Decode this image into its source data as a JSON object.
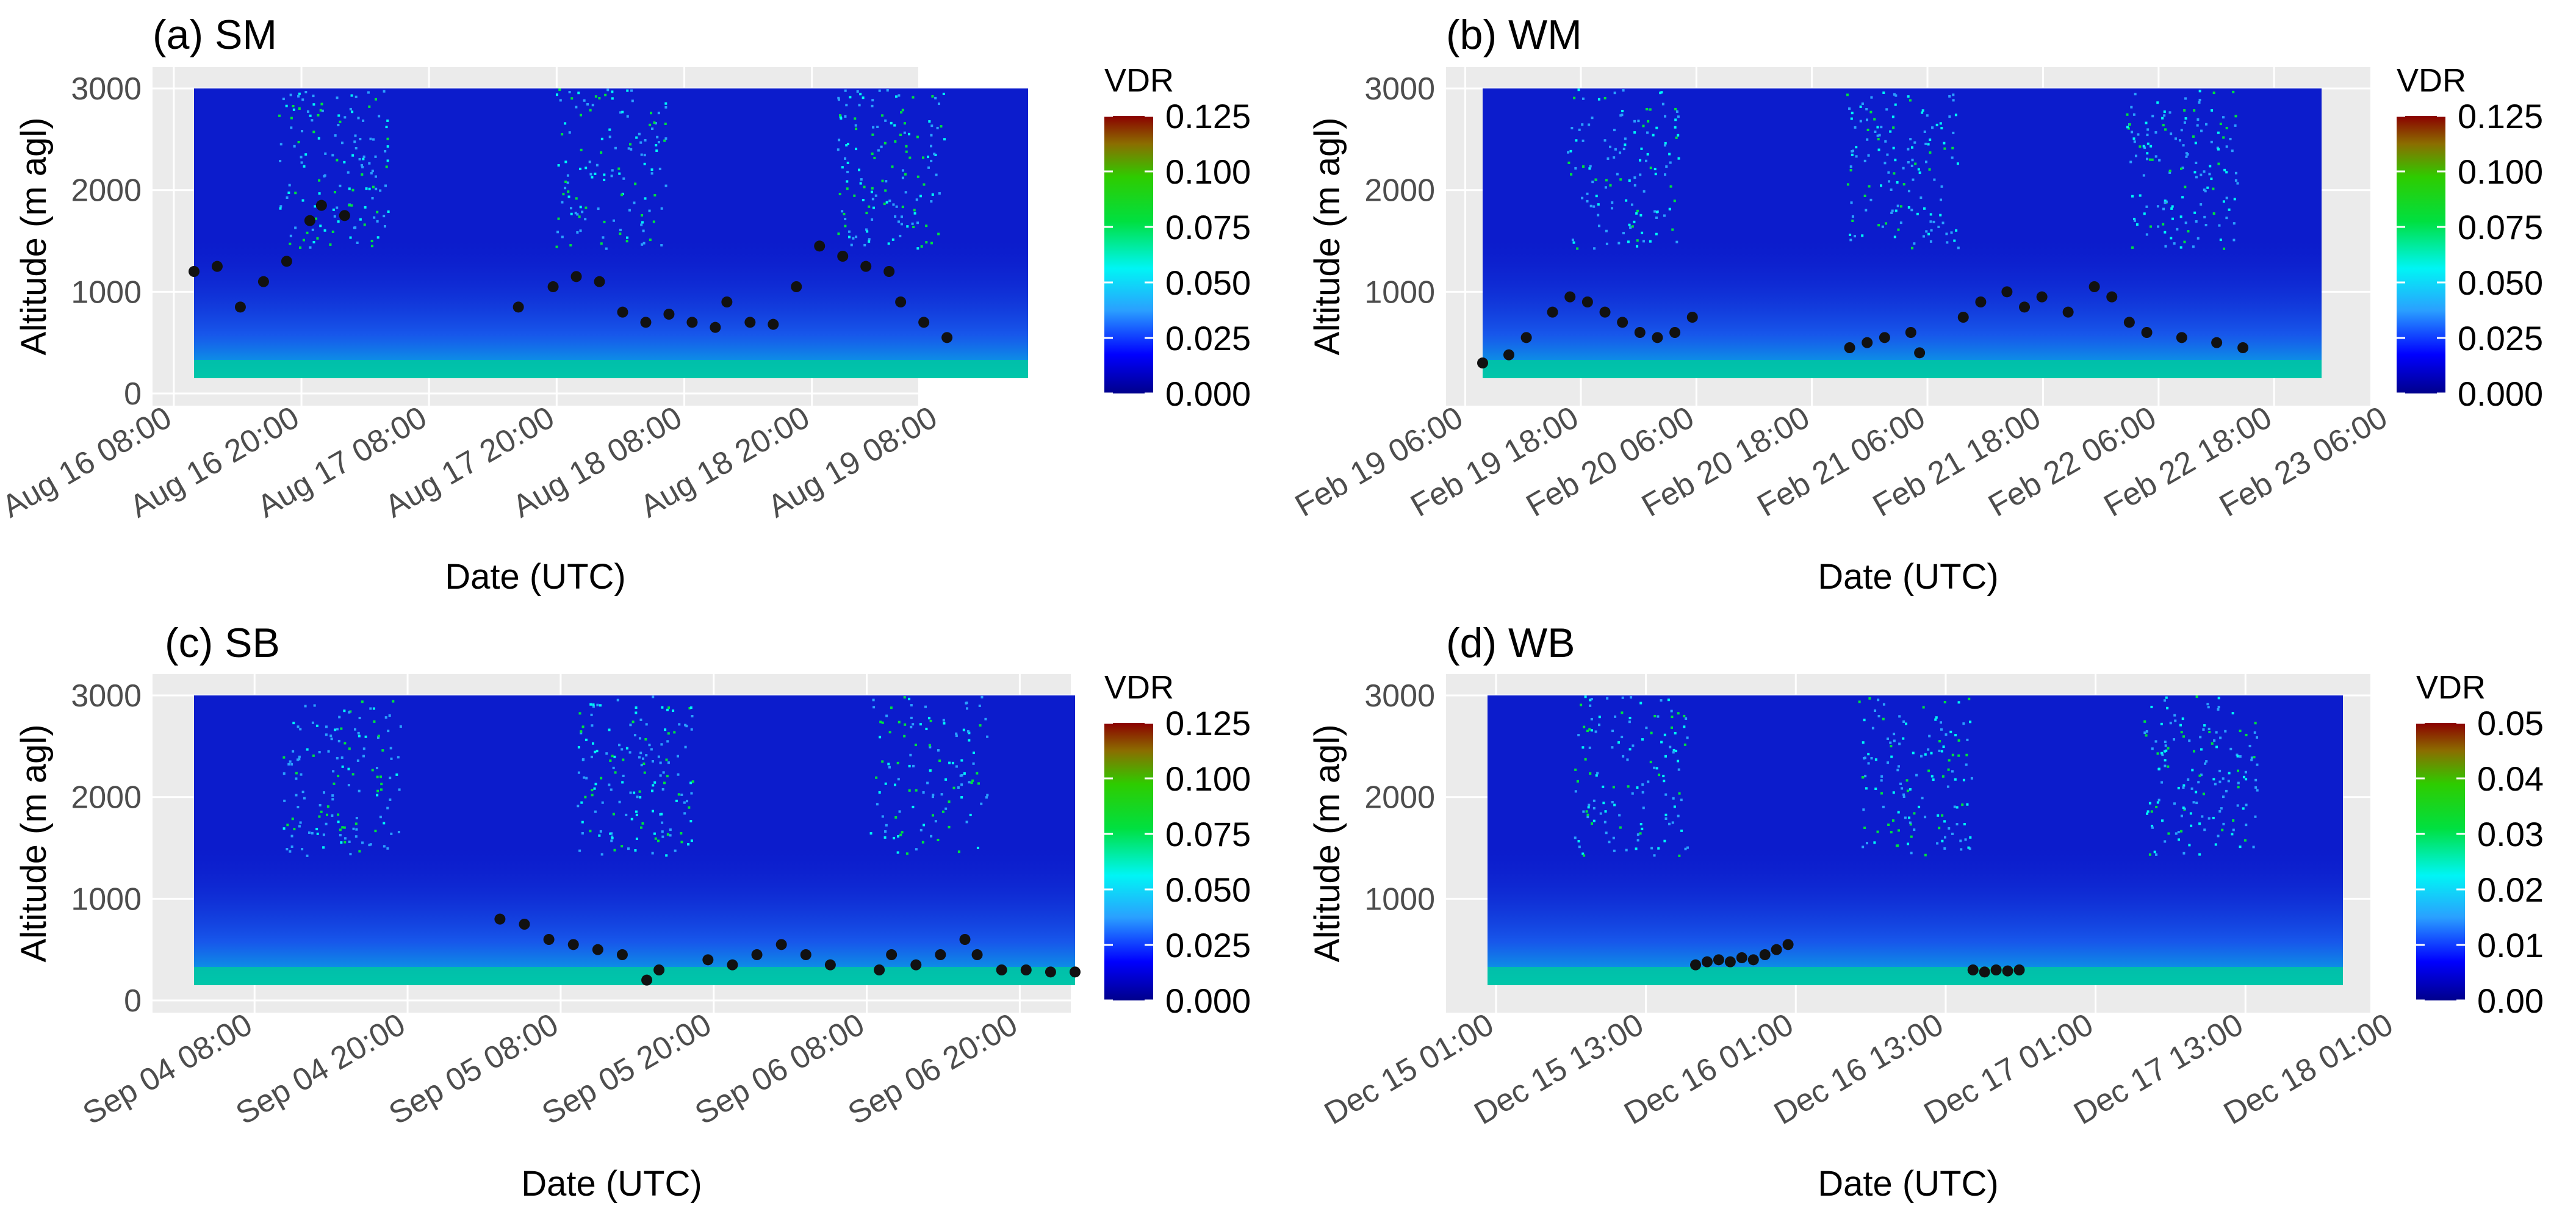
{
  "figure": {
    "colors": {
      "panel_bg": "#ebebeb",
      "grid": "#ffffff",
      "curtain_base": "#0c1ccc",
      "points": "#111111",
      "colorscale": [
        "#00008b",
        "#0000ff",
        "#2aa0ff",
        "#00f5f5",
        "#00e040",
        "#2ecc00",
        "#8b6d00",
        "#8b0000"
      ]
    }
  },
  "chart_data": [
    {
      "id": "a",
      "type": "heatmap",
      "title": "(a) SM",
      "xlabel": "Date (UTC)",
      "ylabel": "Altitude (m agl)",
      "x_hours": [
        0,
        72
      ],
      "ylim": [
        0,
        3000
      ],
      "ytick_values": [
        0,
        1000,
        2000,
        3000
      ],
      "ytick_labels": [
        "0",
        "1000",
        "2000",
        "3000"
      ],
      "xtick_hours": [
        2,
        14,
        26,
        38,
        50,
        62,
        74
      ],
      "xtick_labels": [
        "Aug 16 08:00",
        "Aug 16 20:00",
        "Aug 17 08:00",
        "Aug 17 20:00",
        "Aug 18 08:00",
        "Aug 18 20:00",
        "Aug 19 08:00"
      ],
      "legend": {
        "title": "VDR",
        "range": [
          0,
          0.125
        ],
        "labels": [
          "0.125",
          "0.100",
          "0.075",
          "0.050",
          "0.025",
          "0.000"
        ]
      },
      "heights": [
        [
          0,
          1200
        ],
        [
          2,
          1250
        ],
        [
          4,
          850
        ],
        [
          6,
          1100
        ],
        [
          8,
          1300
        ],
        [
          10,
          1700
        ],
        [
          11,
          1850
        ],
        [
          13,
          1750
        ],
        [
          28,
          850
        ],
        [
          31,
          1050
        ],
        [
          33,
          1150
        ],
        [
          35,
          1100
        ],
        [
          37,
          800
        ],
        [
          39,
          700
        ],
        [
          41,
          780
        ],
        [
          43,
          700
        ],
        [
          45,
          650
        ],
        [
          46,
          900
        ],
        [
          48,
          700
        ],
        [
          50,
          680
        ],
        [
          52,
          1050
        ],
        [
          54,
          1450
        ],
        [
          56,
          1350
        ],
        [
          58,
          1250
        ],
        [
          60,
          1200
        ],
        [
          61,
          900
        ],
        [
          63,
          700
        ],
        [
          65,
          550
        ]
      ]
    },
    {
      "id": "b",
      "type": "heatmap",
      "title": "(b) WM",
      "xlabel": "Date (UTC)",
      "ylabel": "Altitude (m agl)",
      "x_hours": [
        0,
        96
      ],
      "ylim": [
        0,
        3000
      ],
      "ytick_values": [
        1000,
        2000,
        3000
      ],
      "ytick_labels": [
        "1000",
        "2000",
        "3000"
      ],
      "xtick_hours": [
        2,
        14,
        26,
        38,
        50,
        62,
        74,
        86,
        98
      ],
      "xtick_labels": [
        "Feb 19 06:00",
        "Feb 19 18:00",
        "Feb 20 06:00",
        "Feb 20 18:00",
        "Feb 21 06:00",
        "Feb 21 18:00",
        "Feb 22 06:00",
        "Feb 22 18:00",
        "Feb 23 06:00"
      ],
      "legend": {
        "title": "VDR",
        "range": [
          0,
          0.125
        ],
        "labels": [
          "0.125",
          "0.100",
          "0.075",
          "0.050",
          "0.025",
          "0.000"
        ]
      },
      "heights": [
        [
          0,
          300
        ],
        [
          3,
          380
        ],
        [
          5,
          550
        ],
        [
          8,
          800
        ],
        [
          10,
          950
        ],
        [
          12,
          900
        ],
        [
          14,
          800
        ],
        [
          16,
          700
        ],
        [
          18,
          600
        ],
        [
          20,
          550
        ],
        [
          22,
          600
        ],
        [
          24,
          750
        ],
        [
          42,
          450
        ],
        [
          44,
          500
        ],
        [
          46,
          550
        ],
        [
          49,
          600
        ],
        [
          50,
          400
        ],
        [
          55,
          750
        ],
        [
          57,
          900
        ],
        [
          60,
          1000
        ],
        [
          62,
          850
        ],
        [
          64,
          950
        ],
        [
          67,
          800
        ],
        [
          70,
          1050
        ],
        [
          72,
          950
        ],
        [
          74,
          700
        ],
        [
          76,
          600
        ],
        [
          80,
          550
        ],
        [
          84,
          500
        ],
        [
          87,
          450
        ]
      ]
    },
    {
      "id": "c",
      "type": "heatmap",
      "title": "(c) SB",
      "xlabel": "Date (UTC)",
      "ylabel": "Altitude (m agl)",
      "x_hours": [
        0,
        72
      ],
      "ylim": [
        0,
        3000
      ],
      "ytick_values": [
        0,
        1000,
        2000,
        3000
      ],
      "ytick_labels": [
        "0",
        "1000",
        "2000",
        "3000"
      ],
      "xtick_hours": [
        8,
        20,
        32,
        44,
        56,
        68
      ],
      "xtick_labels": [
        "Sep 04 08:00",
        "Sep 04 20:00",
        "Sep 05 08:00",
        "Sep 05 20:00",
        "Sep 06 08:00",
        "Sep 06 20:00"
      ],
      "legend": {
        "title": "VDR",
        "range": [
          0,
          0.125
        ],
        "labels": [
          "0.125",
          "0.100",
          "0.075",
          "0.050",
          "0.025",
          "0.000"
        ]
      },
      "heights": [
        [
          25,
          800
        ],
        [
          27,
          750
        ],
        [
          29,
          600
        ],
        [
          31,
          550
        ],
        [
          33,
          500
        ],
        [
          35,
          450
        ],
        [
          37,
          200
        ],
        [
          38,
          300
        ],
        [
          42,
          400
        ],
        [
          44,
          350
        ],
        [
          46,
          450
        ],
        [
          48,
          550
        ],
        [
          50,
          450
        ],
        [
          52,
          350
        ],
        [
          56,
          300
        ],
        [
          57,
          450
        ],
        [
          59,
          350
        ],
        [
          61,
          450
        ],
        [
          63,
          600
        ],
        [
          64,
          450
        ],
        [
          66,
          300
        ],
        [
          68,
          300
        ],
        [
          70,
          280
        ],
        [
          72,
          280
        ]
      ]
    },
    {
      "id": "d",
      "type": "heatmap",
      "title": "(d) WB",
      "xlabel": "Date (UTC)",
      "ylabel": "Altitude (m agl)",
      "x_hours": [
        0,
        74
      ],
      "ylim": [
        0,
        3000
      ],
      "ytick_values": [
        1000,
        2000,
        3000
      ],
      "ytick_labels": [
        "1000",
        "2000",
        "3000"
      ],
      "xtick_hours": [
        4,
        16,
        28,
        40,
        52,
        64,
        76
      ],
      "xtick_labels": [
        "Dec 15 01:00",
        "Dec 15 13:00",
        "Dec 16 01:00",
        "Dec 16 13:00",
        "Dec 17 01:00",
        "Dec 17 13:00",
        "Dec 18 01:00"
      ],
      "legend": {
        "title": "VDR",
        "range": [
          0,
          0.05
        ],
        "labels": [
          "0.05",
          "0.04",
          "0.03",
          "0.02",
          "0.01",
          "0.00"
        ]
      },
      "heights": [
        [
          18,
          350
        ],
        [
          19,
          380
        ],
        [
          20,
          400
        ],
        [
          21,
          380
        ],
        [
          22,
          420
        ],
        [
          23,
          400
        ],
        [
          24,
          450
        ],
        [
          25,
          500
        ],
        [
          26,
          550
        ],
        [
          42,
          300
        ],
        [
          43,
          280
        ],
        [
          44,
          300
        ],
        [
          45,
          290
        ],
        [
          46,
          300
        ]
      ]
    }
  ]
}
